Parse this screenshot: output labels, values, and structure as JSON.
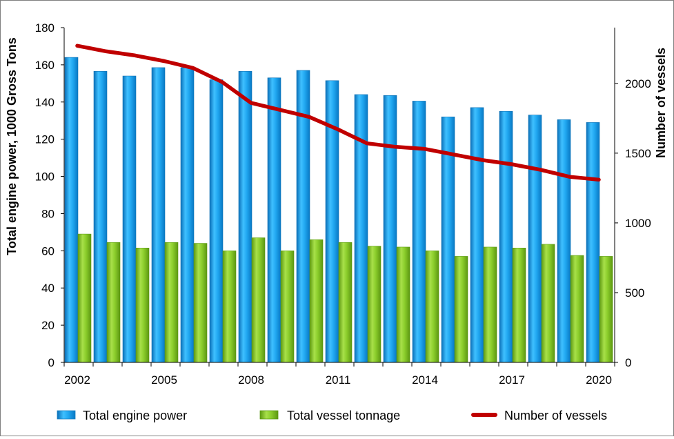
{
  "chart_data": {
    "type": "bar+line",
    "title": "",
    "ylabel_left": "Total engine power, 1000 Gross Tons",
    "ylabel_right": "Number of vessels",
    "ylim_left": [
      0,
      180
    ],
    "ylim_right": [
      0,
      2400
    ],
    "yticks_left": [
      0,
      20,
      40,
      60,
      80,
      100,
      120,
      140,
      160,
      180
    ],
    "yticks_right": [
      0,
      500,
      1000,
      1500,
      2000
    ],
    "years": [
      2002,
      2003,
      2004,
      2005,
      2006,
      2007,
      2008,
      2009,
      2010,
      2011,
      2012,
      2013,
      2014,
      2015,
      2016,
      2017,
      2018,
      2019,
      2020
    ],
    "xtick_labels": [
      "2002",
      "2005",
      "2008",
      "2011",
      "2014",
      "2017",
      "2020"
    ],
    "series": [
      {
        "name": "Total engine power",
        "type": "bar",
        "axis": "left",
        "color": "#1ea7f0",
        "values": [
          164,
          156.5,
          154,
          158.5,
          158.5,
          152,
          156.5,
          153,
          157,
          151.5,
          144,
          143.5,
          140.5,
          132,
          137,
          135,
          133,
          130.5,
          129
        ]
      },
      {
        "name": "Total vessel tonnage",
        "type": "bar",
        "axis": "left",
        "color": "#8fd12e",
        "values": [
          69,
          64.5,
          61.5,
          64.5,
          64,
          60,
          67,
          60,
          66,
          64.5,
          62.5,
          62,
          60,
          57,
          62,
          61.5,
          63.5,
          57.5,
          57
        ]
      },
      {
        "name": "Number of vessels",
        "type": "line",
        "axis": "right",
        "color": "#c00000",
        "values": [
          2270,
          2230,
          2200,
          2160,
          2110,
          2010,
          1860,
          1810,
          1760,
          1670,
          1570,
          1545,
          1530,
          1490,
          1450,
          1420,
          1380,
          1330,
          1310
        ]
      }
    ],
    "legend": [
      "Total engine power",
      "Total vessel tonnage",
      "Number of vessels"
    ],
    "legend_position": "bottom"
  }
}
